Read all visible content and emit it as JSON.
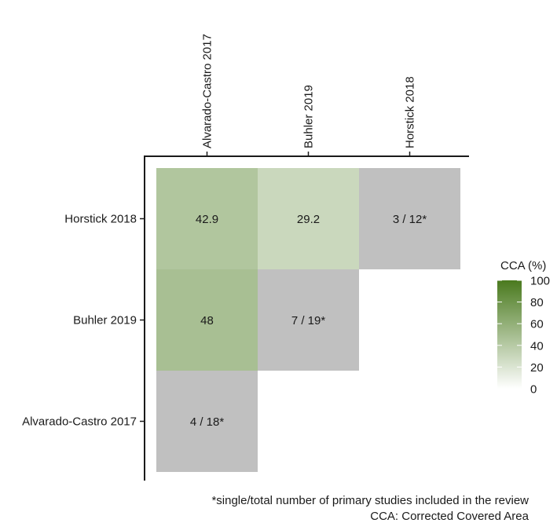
{
  "chart_data": {
    "type": "heatmap",
    "columns": [
      "Alvarado-Castro 2017",
      "Buhler 2019",
      "Horstick 2018"
    ],
    "rows": [
      "Horstick 2018",
      "Buhler 2019",
      "Alvarado-Castro 2017"
    ],
    "cells": [
      {
        "row": "Horstick 2018",
        "col": "Alvarado-Castro 2017",
        "label": "42.9",
        "value": 42.9,
        "kind": "cca"
      },
      {
        "row": "Horstick 2018",
        "col": "Buhler 2019",
        "label": "29.2",
        "value": 29.2,
        "kind": "cca"
      },
      {
        "row": "Horstick 2018",
        "col": "Horstick 2018",
        "label": "3 / 12*",
        "value": null,
        "kind": "diagonal"
      },
      {
        "row": "Buhler 2019",
        "col": "Alvarado-Castro 2017",
        "label": "48",
        "value": 48,
        "kind": "cca"
      },
      {
        "row": "Buhler 2019",
        "col": "Buhler 2019",
        "label": "7 / 19*",
        "value": null,
        "kind": "diagonal"
      },
      {
        "row": "Alvarado-Castro 2017",
        "col": "Alvarado-Castro 2017",
        "label": "4 / 18*",
        "value": null,
        "kind": "diagonal"
      }
    ],
    "legend": {
      "title": "CCA (%)",
      "ticks": [
        0,
        20,
        40,
        60,
        80,
        100
      ],
      "range": [
        0,
        100
      ],
      "low_color": "#ffffff",
      "high_color": "#4a7a1e",
      "placement": "right"
    },
    "diagonal_color": "#c0c0c0",
    "notes": [
      "*single/total number of primary studies included in the review",
      "CCA: Corrected Covered Area"
    ]
  }
}
